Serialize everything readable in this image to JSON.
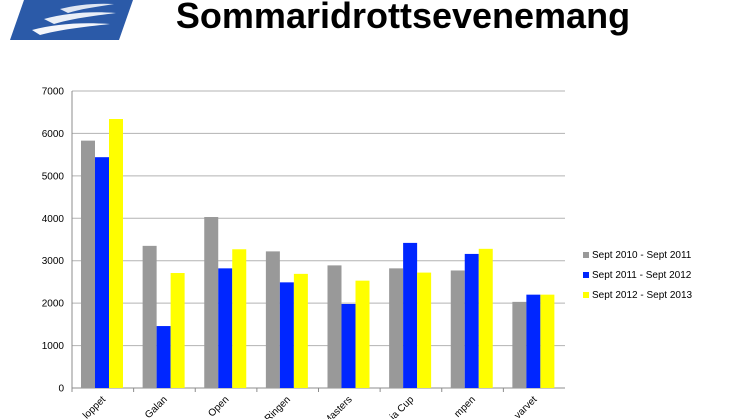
{
  "page": {
    "title": "Sommaridrottsevenemang"
  },
  "colors": {
    "logo_background": "#2b5aa8",
    "series": [
      "#999999",
      "#0026ff",
      "#ffff00"
    ]
  },
  "chart_data": {
    "type": "bar",
    "title": "",
    "xlabel": "",
    "ylabel": "",
    "ylim": [
      0,
      7000
    ],
    "yticks": [
      "0",
      "1000",
      "2000",
      "3000",
      "4000",
      "5000",
      "6000",
      "7000"
    ],
    "grid": true,
    "legend_position": "right",
    "categories": [
      "Vätternrundan/loppet",
      "Galan",
      "Open",
      "Ringen",
      "Masters",
      "ia Cup",
      "mpen",
      "varvet"
    ],
    "category_labels": [
      "loppet",
      "Galan",
      "Open",
      "Ringen",
      "Masters",
      "ia Cup",
      "mpen",
      "varvet"
    ],
    "series": [
      {
        "name": "Sept 2010 - Sept 2011",
        "values": [
          5830,
          3350,
          4030,
          3220,
          2890,
          2820,
          2770,
          2030
        ]
      },
      {
        "name": "Sept 2011 - Sept 2012",
        "values": [
          5440,
          1460,
          2820,
          2490,
          1980,
          3420,
          3160,
          2200
        ]
      },
      {
        "name": "Sept 2012 - Sept 2013",
        "values": [
          6340,
          2710,
          3270,
          2690,
          2530,
          2720,
          3280,
          2200
        ]
      }
    ]
  }
}
